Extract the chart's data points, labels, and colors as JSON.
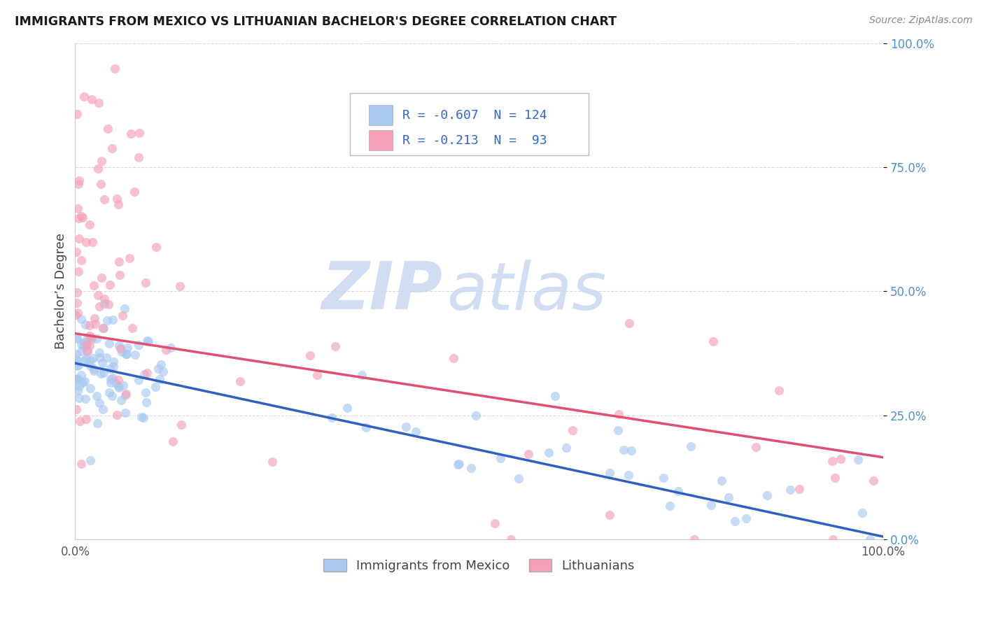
{
  "title": "IMMIGRANTS FROM MEXICO VS LITHUANIAN BACHELOR'S DEGREE CORRELATION CHART",
  "source": "Source: ZipAtlas.com",
  "ylabel": "Bachelor’s Degree",
  "legend_label1": "Immigrants from Mexico",
  "legend_label2": "Lithuanians",
  "color_blue": "#a8c8f0",
  "color_pink": "#f5a0b8",
  "color_blue_line": "#3060c0",
  "color_pink_line": "#e05070",
  "color_dashed": "#d0b0c0",
  "watermark_zip": "#c8d8f0",
  "watermark_atlas": "#c8d8f0",
  "background_color": "#ffffff",
  "grid_color": "#d8d8d8",
  "ytick_color": "#4a90d9",
  "title_color": "#1a1a1a",
  "source_color": "#888888",
  "label_color": "#444444"
}
